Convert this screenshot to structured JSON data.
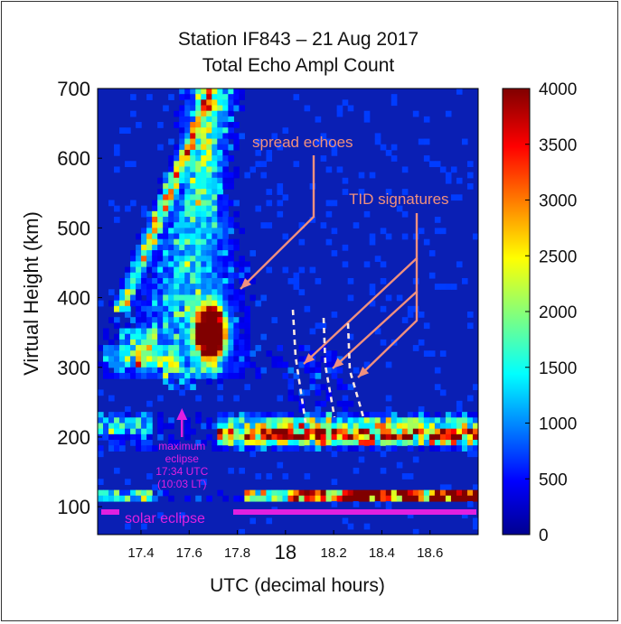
{
  "chart_data": {
    "type": "heatmap",
    "title": "Station IF843 – 21 Aug 2017",
    "subtitle": "Total Echo Ampl Count",
    "xlabel": "UTC (decimal hours)",
    "ylabel": "Virtual Height (km)",
    "xlim": [
      17.22,
      18.8
    ],
    "ylim": [
      60,
      700
    ],
    "x_ticks": [
      "17.4",
      "17.6",
      "17.8",
      "18",
      "18.2",
      "18.4",
      "18.6"
    ],
    "y_ticks": [
      "100",
      "200",
      "300",
      "400",
      "500",
      "600",
      "700"
    ],
    "colorbar": {
      "ticks": [
        "0",
        "500",
        "1000",
        "1500",
        "2000",
        "2500",
        "3000",
        "3500",
        "4000"
      ],
      "range": [
        0,
        4000
      ],
      "colormap": "jet"
    },
    "regions": [
      {
        "feature": "F-layer trace with spread echoes",
        "x_range": [
          17.3,
          17.8
        ],
        "height_range": [
          280,
          700
        ],
        "peak_count": 4000
      },
      {
        "feature": "Maximum intensity core",
        "x_range": [
          17.6,
          17.75
        ],
        "height_range": [
          310,
          390
        ],
        "peak_count": 4000
      },
      {
        "feature": "Bottomside trace",
        "x_range": [
          17.25,
          18.8
        ],
        "height_range": [
          180,
          230
        ],
        "peak_count": 2400
      },
      {
        "feature": "E-layer echoes",
        "x_range": [
          17.25,
          18.8
        ],
        "height_range": [
          110,
          125
        ],
        "peak_count": 3800
      }
    ],
    "annotations": {
      "spread": "spread echoes",
      "tid": "TID signatures",
      "eclipse_lines": [
        "maximum",
        "eclipse",
        "17:34 UTC",
        "(10:03 LT)"
      ],
      "solar": "solar eclipse"
    },
    "eclipse_max_x": 17.57,
    "eclipse_bar_height": 85,
    "colors": {
      "annotation": "#f0907e",
      "eclipse": "#e020e0",
      "background_cell": "#0a1fb4"
    }
  }
}
